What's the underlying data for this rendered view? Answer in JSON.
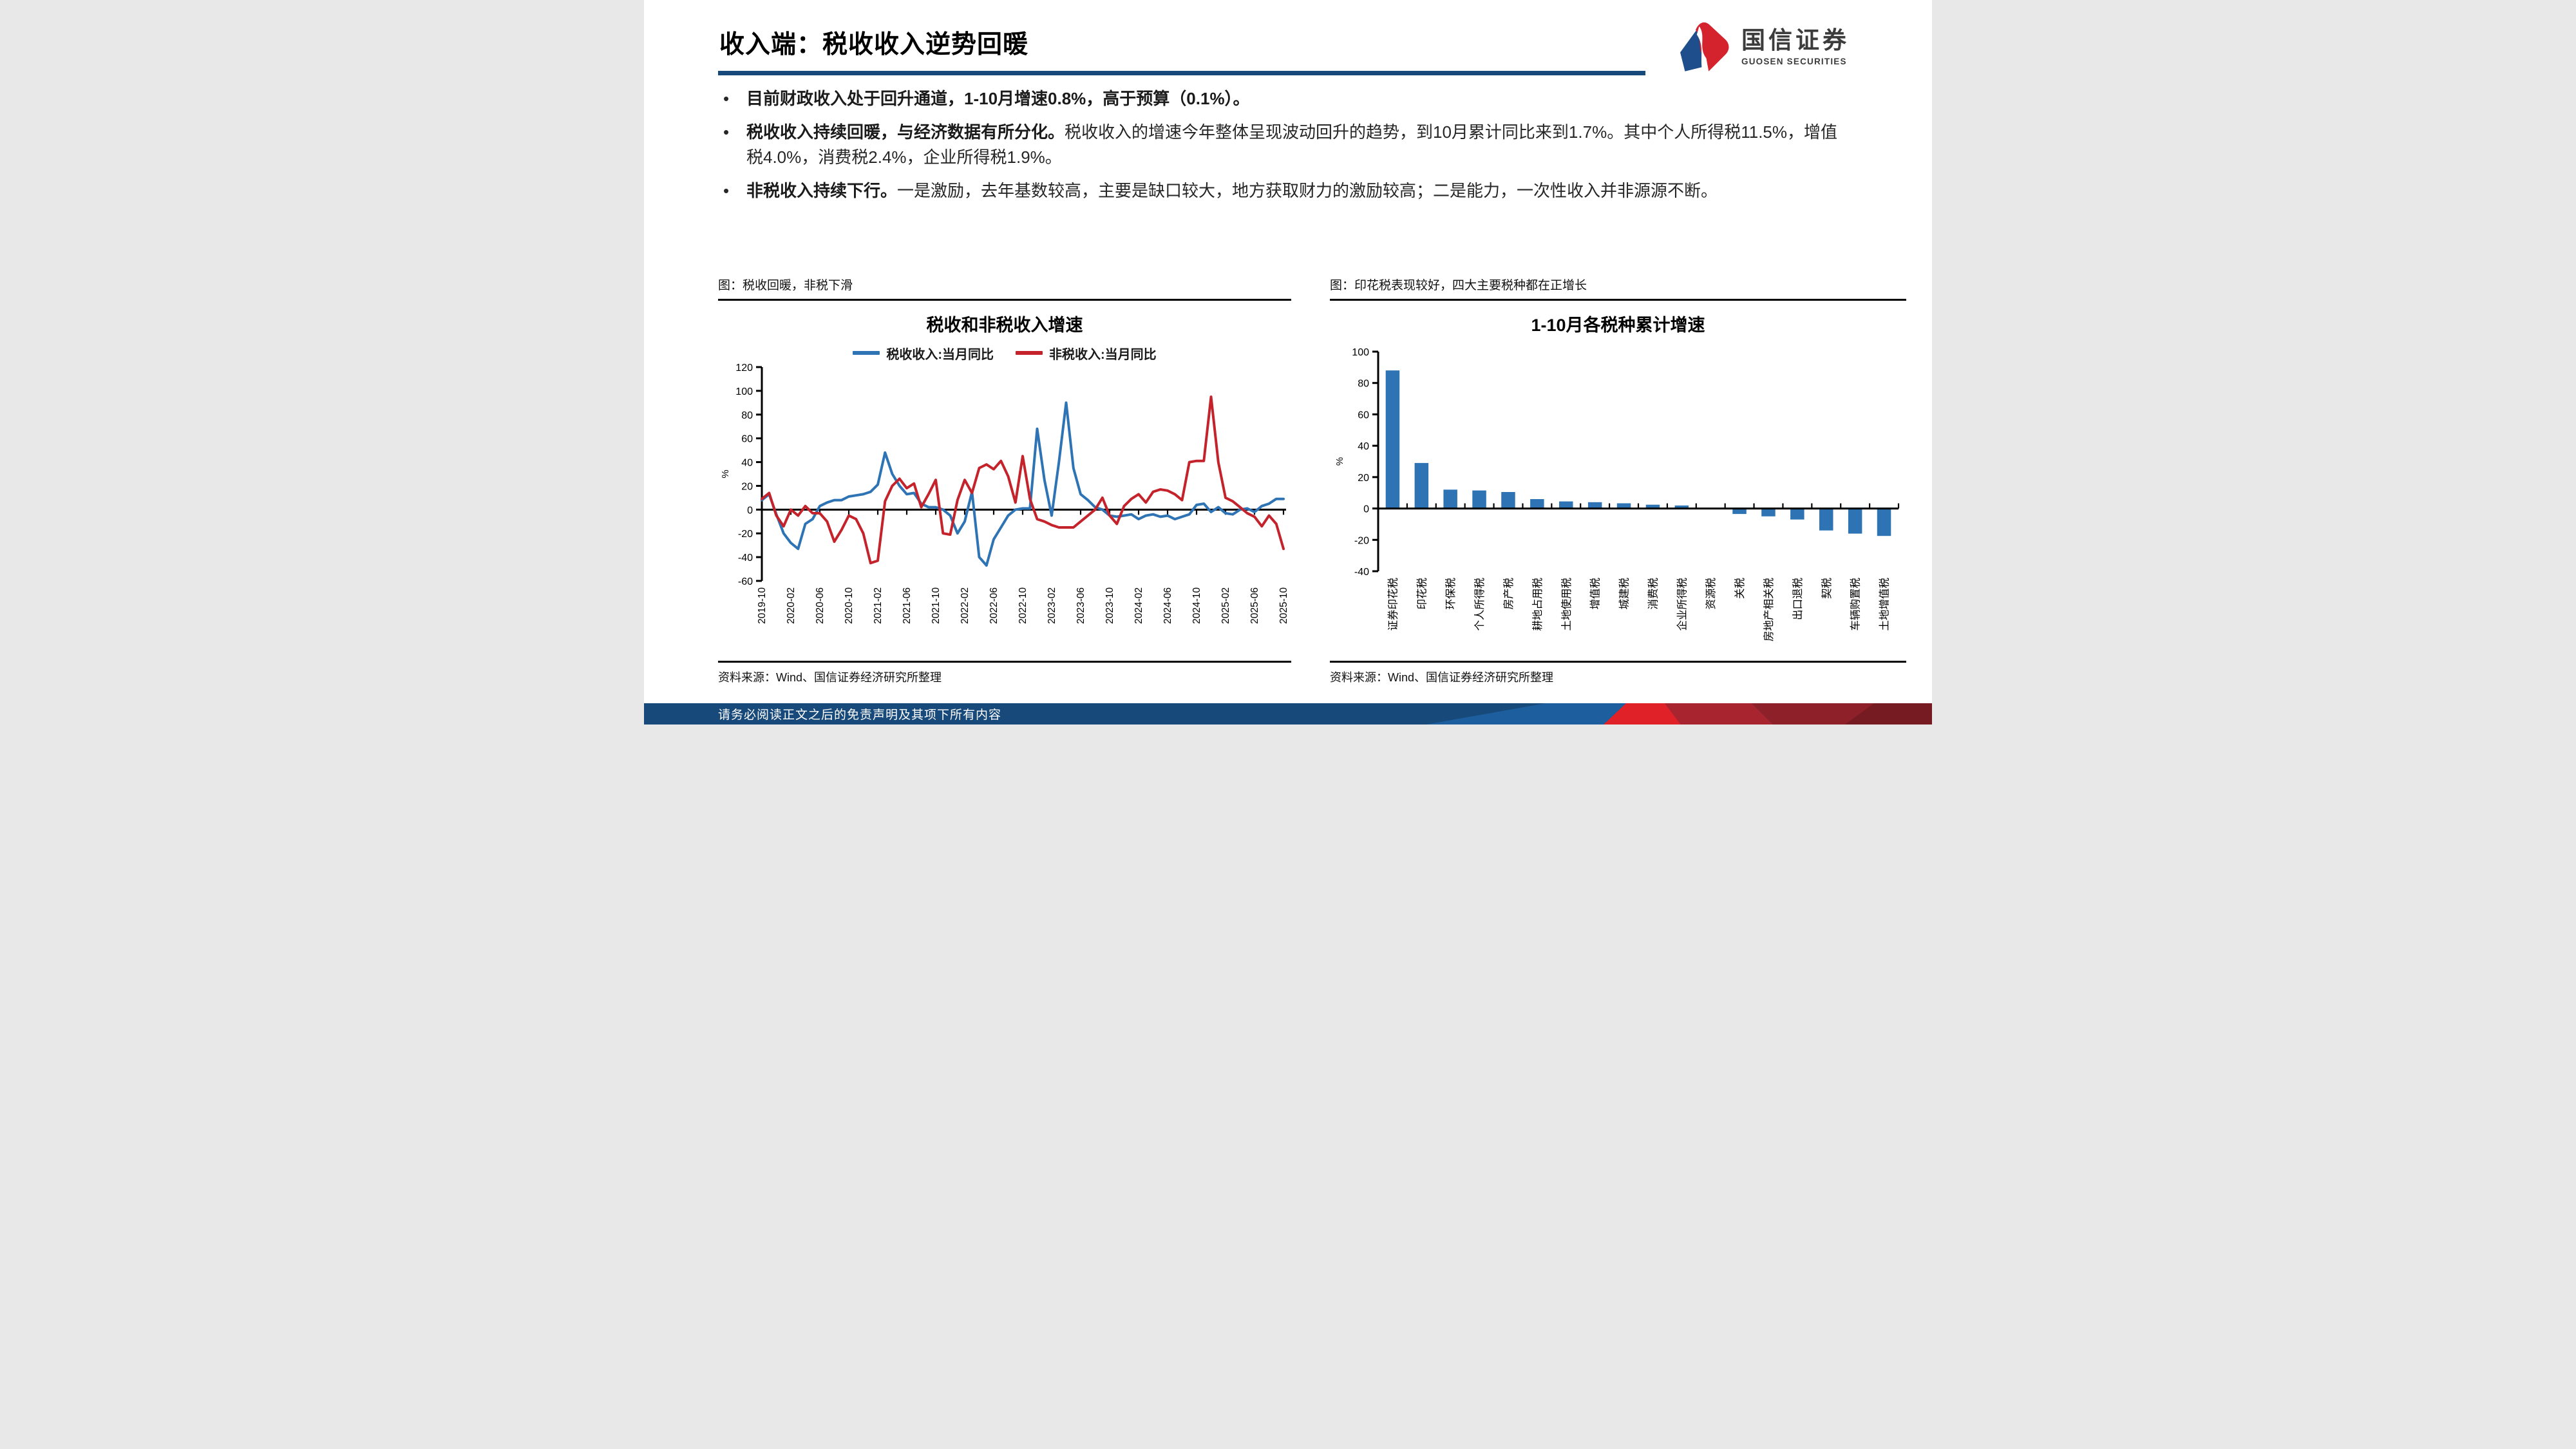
{
  "header": {
    "title": "收入端：税收收入逆势回暖",
    "logo_cn": "国信证券",
    "logo_en": "GUOSEN SECURITIES"
  },
  "bullets": [
    {
      "bold": "目前财政收入处于回升通道，1-10月增速0.8%，高于预算（0.1%）。",
      "rest": ""
    },
    {
      "bold": "税收收入持续回暖，与经济数据有所分化。",
      "rest": "税收收入的增速今年整体呈现波动回升的趋势，到10月累计同比来到1.7%。其中个人所得税11.5%，增值税4.0%，消费税2.4%，企业所得税1.9%。"
    },
    {
      "bold": "非税收入持续下行。",
      "rest": "一是激励，去年基数较高，主要是缺口较大，地方获取财力的激励较高；二是能力，一次性收入并非源源不断。"
    }
  ],
  "left_panel": {
    "caption": "图：税收回暖，非税下滑",
    "source": "资料来源：Wind、国信证券经济研究所整理"
  },
  "right_panel": {
    "caption": "图：印花税表现较好，四大主要税种都在正增长",
    "source": "资料来源：Wind、国信证券经济研究所整理"
  },
  "footer": {
    "disclaimer": "请务必阅读正文之后的免责声明及其项下所有内容"
  },
  "colors": {
    "accent_navy": "#17497A",
    "line_blue": "#2E74B5",
    "line_red": "#C4232B",
    "bar_blue": "#2E74B5"
  },
  "chart_data": [
    {
      "type": "line",
      "title": "税收和非税收入增速",
      "ylabel": "%",
      "ylim": [
        -60,
        120
      ],
      "ytick_step": 20,
      "xtick_every": 4,
      "grid": false,
      "legend_position": "top",
      "x": [
        "2019-10",
        "2019-11",
        "2019-12",
        "2020-01",
        "2020-02",
        "2020-03",
        "2020-04",
        "2020-05",
        "2020-06",
        "2020-07",
        "2020-08",
        "2020-09",
        "2020-10",
        "2020-11",
        "2020-12",
        "2021-01",
        "2021-02",
        "2021-03",
        "2021-04",
        "2021-05",
        "2021-06",
        "2021-07",
        "2021-08",
        "2021-09",
        "2021-10",
        "2021-11",
        "2021-12",
        "2022-01",
        "2022-02",
        "2022-03",
        "2022-04",
        "2022-05",
        "2022-06",
        "2022-07",
        "2022-08",
        "2022-09",
        "2022-10",
        "2022-11",
        "2022-12",
        "2023-01",
        "2023-02",
        "2023-03",
        "2023-04",
        "2023-05",
        "2023-06",
        "2023-07",
        "2023-08",
        "2023-09",
        "2023-10",
        "2023-11",
        "2023-12",
        "2024-01",
        "2024-02",
        "2024-03",
        "2024-04",
        "2024-05",
        "2024-06",
        "2024-07",
        "2024-08",
        "2024-09",
        "2024-10",
        "2024-11",
        "2024-12",
        "2025-01",
        "2025-02",
        "2025-03",
        "2025-04",
        "2025-05",
        "2025-06",
        "2025-07",
        "2025-08",
        "2025-09",
        "2025-10"
      ],
      "series": [
        {
          "name": "税收收入:当月同比",
          "color": "#2E74B5",
          "values": [
            8,
            13,
            -4,
            -20,
            -28,
            -33,
            -12,
            -8,
            3,
            6,
            8,
            8,
            11,
            12,
            13,
            15,
            21,
            48,
            30,
            20,
            13,
            14,
            5,
            2,
            2,
            0,
            -5,
            -20,
            -10,
            15,
            -40,
            -47,
            -25,
            -15,
            -5,
            0,
            1,
            1,
            68,
            25,
            -5,
            40,
            90,
            35,
            13,
            8,
            2,
            0,
            -5,
            -6,
            -5,
            -4,
            -8,
            -5,
            -4,
            -6,
            -5,
            -8,
            -6,
            -4,
            4,
            5,
            -2,
            2,
            -3,
            -4,
            0,
            1,
            -2,
            3,
            5,
            9,
            9
          ]
        },
        {
          "name": "非税收入:当月同比",
          "color": "#C4232B",
          "values": [
            9,
            14,
            -5,
            -14,
            0,
            -5,
            3,
            -3,
            -3,
            -10,
            -27,
            -17,
            -5,
            -8,
            -20,
            -45,
            -43,
            7,
            20,
            26,
            18,
            22,
            2,
            13,
            25,
            -20,
            -21,
            8,
            25,
            14,
            35,
            38,
            34,
            41,
            28,
            6,
            45,
            9,
            -8,
            -10,
            -13,
            -15,
            -15,
            -15,
            -10,
            -5,
            0,
            10,
            -5,
            -12,
            3,
            9,
            13,
            6,
            15,
            17,
            16,
            13,
            8,
            40,
            41,
            41,
            95,
            40,
            10,
            7,
            2,
            -3,
            -6,
            -14,
            -5,
            -12,
            -33
          ]
        }
      ]
    },
    {
      "type": "bar",
      "title": "1-10月各税种累计增速",
      "ylabel": "%",
      "ylim": [
        -40,
        100
      ],
      "ytick_step": 20,
      "grid": false,
      "bar_color": "#2E74B5",
      "categories": [
        "证券印花税",
        "印花税",
        "环保税",
        "个人所得税",
        "房产税",
        "耕地占用税",
        "土地使用税",
        "增值税",
        "城建税",
        "消费税",
        "企业所得税",
        "资源税",
        "关税",
        "房地产相关税",
        "出口退税",
        "契税",
        "车辆购置税",
        "土地增值税"
      ],
      "values": [
        88,
        29,
        12,
        11.5,
        10.5,
        6,
        4.5,
        4,
        3.3,
        2.4,
        1.9,
        0,
        -3.5,
        -5,
        -7,
        -14,
        -16,
        -17.5
      ]
    }
  ]
}
